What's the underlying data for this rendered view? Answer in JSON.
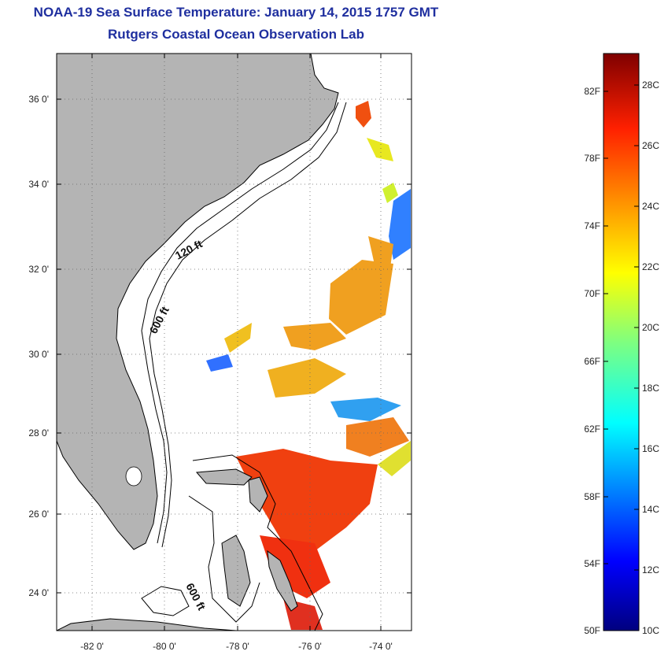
{
  "header": {
    "title": "NOAA-19 Sea Surface Temperature:  January 14, 2015 1757 GMT",
    "subtitle": "Rutgers Coastal Ocean Observation Lab"
  },
  "map": {
    "lon_labels": [
      "-82 0'",
      "-80 0'",
      "-78 0'",
      "-76 0'",
      "-74 0'"
    ],
    "lat_labels": [
      "36 0'",
      "34 0'",
      "32 0'",
      "30 0'",
      "28 0'",
      "26 0'",
      "24 0'"
    ],
    "contours": {
      "shallow": "120 ft",
      "deep": "600 ft",
      "deep_south": "600 ft"
    },
    "colors": {
      "land": "#b4b4b4",
      "ocean": "#ffffff",
      "coastline": "#000000"
    }
  },
  "colorbar": {
    "fahrenheit_labels": [
      "82F",
      "78F",
      "74F",
      "70F",
      "66F",
      "62F",
      "58F",
      "54F",
      "50F"
    ],
    "celsius_labels": [
      "28C",
      "26C",
      "24C",
      "22C",
      "20C",
      "18C",
      "16C",
      "14C",
      "12C",
      "10C"
    ],
    "range_c": [
      10,
      29
    ],
    "colormap": "jet"
  }
}
